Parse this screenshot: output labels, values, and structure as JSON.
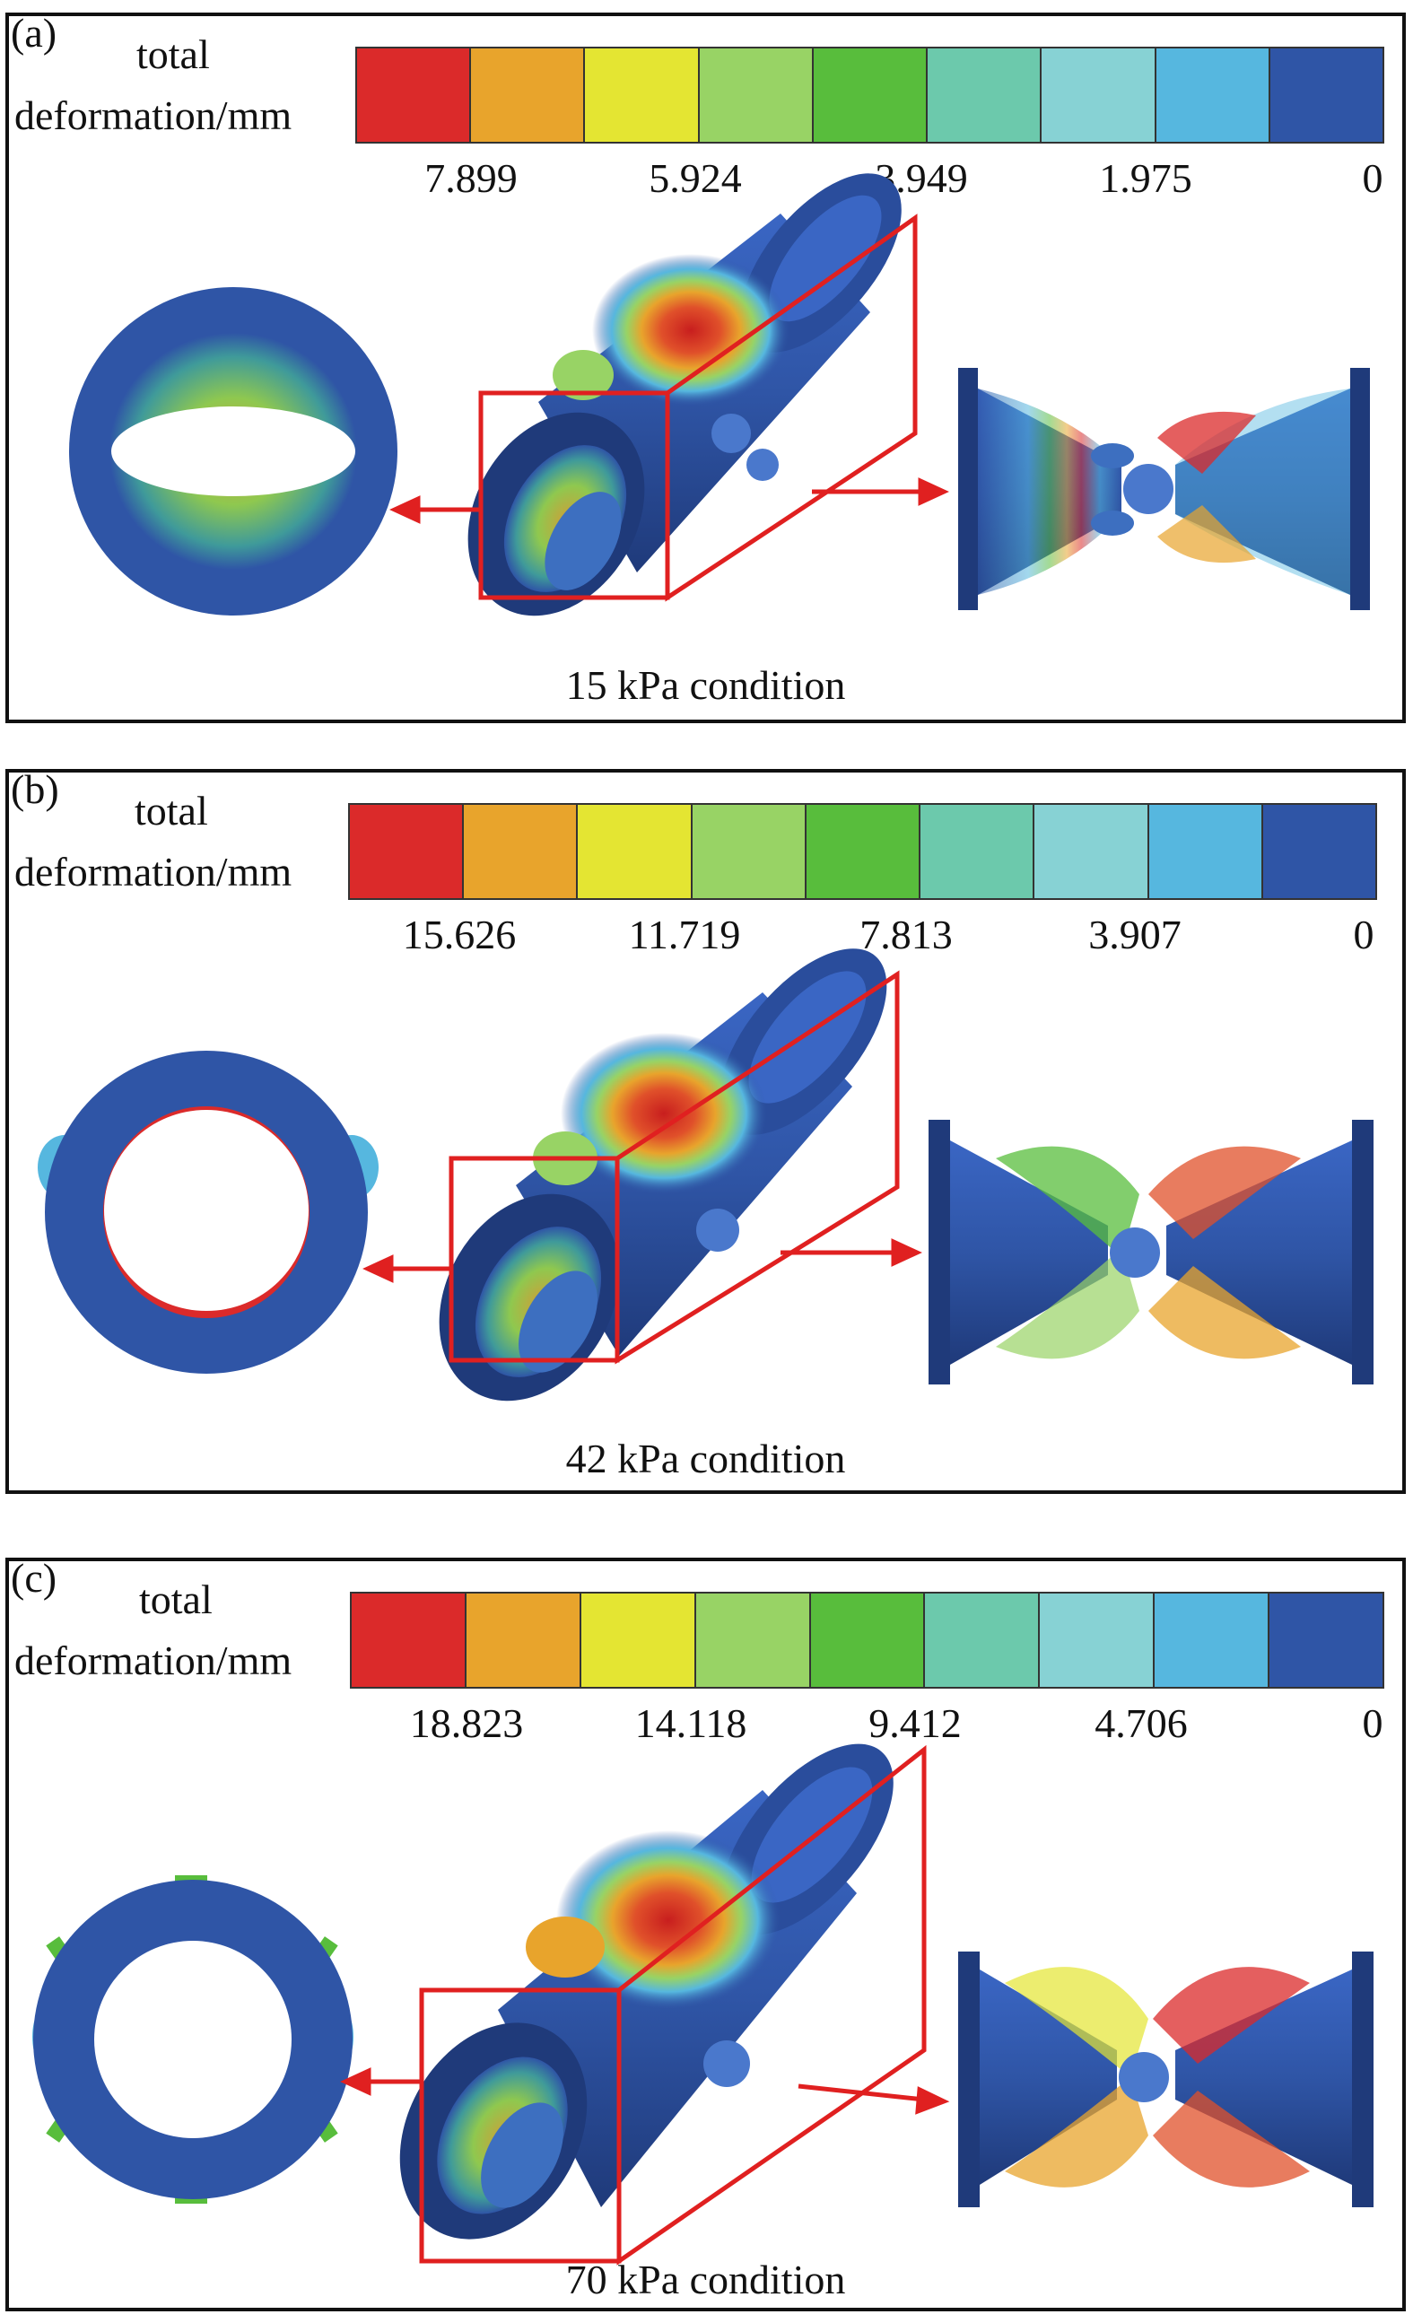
{
  "legend_colors": [
    "#db2a2a",
    "#e8a42c",
    "#e4e532",
    "#98d365",
    "#58bd3c",
    "#6cc9ac",
    "#87d2d4",
    "#56b7df",
    "#2f55a6"
  ],
  "panels": [
    {
      "tag": "(a)",
      "legend_line1": "total",
      "legend_line2": "deformation/mm",
      "ticks": [
        "7.899",
        "5.924",
        "3.949",
        "1.975",
        "0"
      ],
      "caption": "15 kPa condition"
    },
    {
      "tag": "(b)",
      "legend_line1": "total",
      "legend_line2": "deformation/mm",
      "ticks": [
        "15.626",
        "11.719",
        "7.813",
        "3.907",
        "0"
      ],
      "caption": "42 kPa condition"
    },
    {
      "tag": "(c)",
      "legend_line1": "total",
      "legend_line2": "deformation/mm",
      "ticks": [
        "18.823",
        "14.118",
        "9.412",
        "4.706",
        "0"
      ],
      "caption": "70 kPa condition"
    }
  ]
}
